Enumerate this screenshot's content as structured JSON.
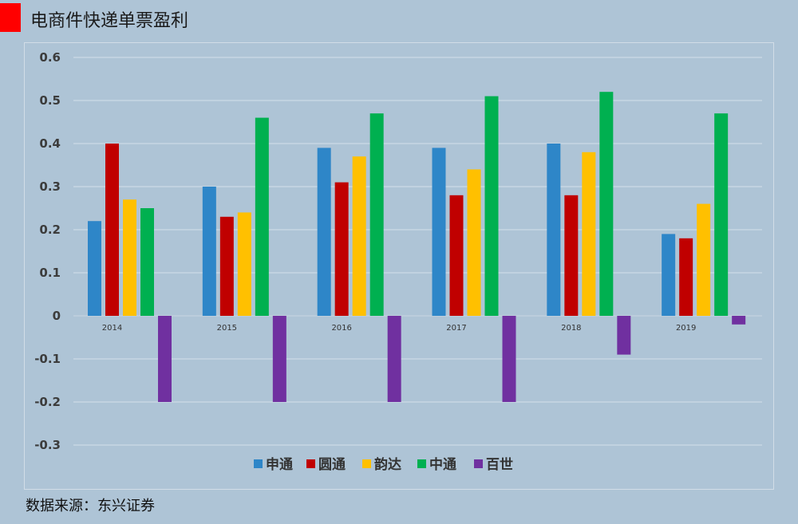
{
  "header": {
    "title": "电商件快递单票盈利",
    "accent_color": "#ff0000"
  },
  "footer": {
    "source": "数据来源：东兴证券"
  },
  "chart_data": {
    "type": "bar",
    "categories": [
      "2014",
      "2015",
      "2016",
      "2017",
      "2018",
      "2019"
    ],
    "series": [
      {
        "name": "申通",
        "color": "#2e86c8",
        "values": [
          0.22,
          0.3,
          0.39,
          0.39,
          0.4,
          0.19
        ]
      },
      {
        "name": "圆通",
        "color": "#c00000",
        "values": [
          0.4,
          0.23,
          0.31,
          0.28,
          0.28,
          0.18
        ]
      },
      {
        "name": "韵达",
        "color": "#ffc000",
        "values": [
          0.27,
          0.24,
          0.37,
          0.34,
          0.38,
          0.26
        ]
      },
      {
        "name": "中通",
        "color": "#00b050",
        "values": [
          0.25,
          0.46,
          0.47,
          0.51,
          0.52,
          0.47
        ]
      },
      {
        "name": "百世",
        "color": "#7030a0",
        "values": [
          -0.2,
          -0.2,
          -0.2,
          -0.2,
          -0.09,
          -0.02
        ]
      }
    ],
    "title": "",
    "xlabel": "",
    "ylabel": "",
    "ylim": [
      -0.3,
      0.6
    ],
    "yticks": [
      "0.6",
      "0.5",
      "0.4",
      "0.3",
      "0.2",
      "0.1",
      "0",
      "-0.1",
      "-0.2",
      "-0.3"
    ],
    "grid": true,
    "legend_position": "bottom"
  }
}
